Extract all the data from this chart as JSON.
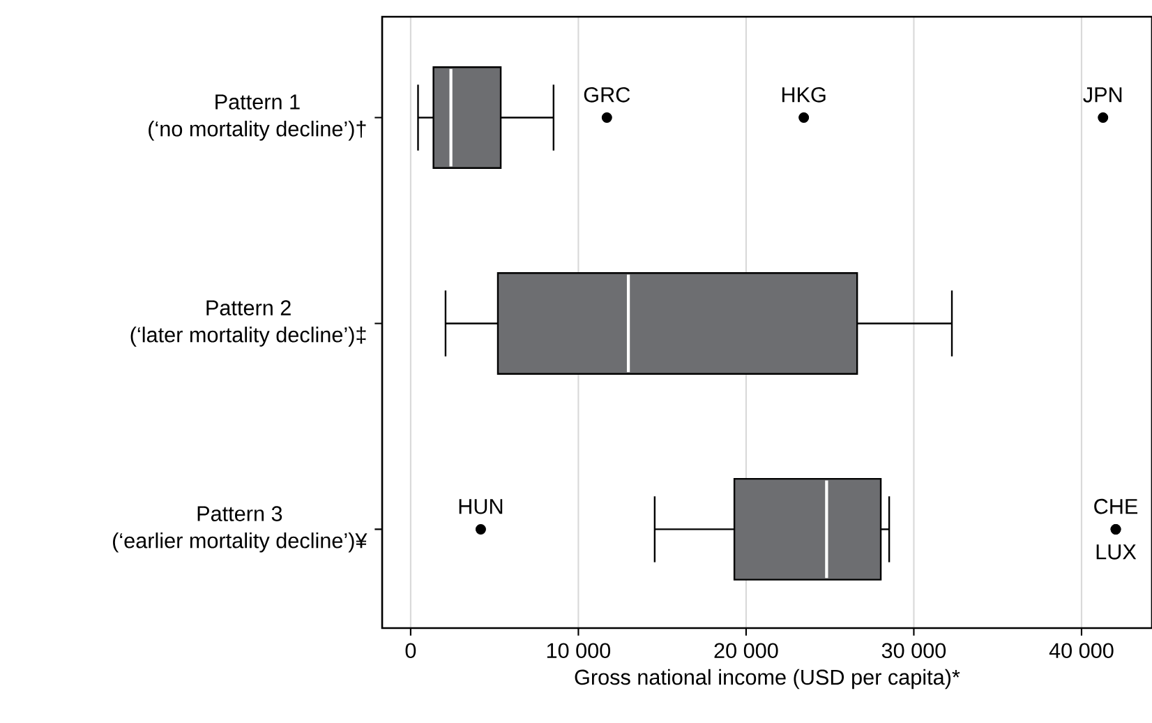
{
  "chart_data": {
    "type": "box",
    "categories": [
      "Pattern 1\n(‘no mortality decline’)†",
      "Pattern 2\n(‘later mortality decline’)‡",
      "Pattern 3\n(‘earlier mortality decline’)¥"
    ],
    "boxes": [
      {
        "low": 440,
        "q1": 1360,
        "median": 2400,
        "q3": 5370,
        "high": 8520,
        "outliers": [
          11700,
          23440,
          41280
        ]
      },
      {
        "low": 2080,
        "q1": 5200,
        "median": 12980,
        "q3": 26620,
        "high": 32270
      },
      {
        "low": 14550,
        "q1": 19300,
        "median": 24800,
        "q3": 28030,
        "high": 28530,
        "outliers": [
          4180,
          42040,
          42040
        ]
      }
    ],
    "color": "#6d6e71",
    "orientation": "horizontal",
    "xlabel": "Gross national income (USD per capita)*",
    "xlim": [
      -1700,
      44200
    ],
    "xticks": [
      0,
      {
        "value": 10000,
        "label": "10 000"
      },
      {
        "value": 20000,
        "label": "20 000"
      },
      {
        "value": 30000,
        "label": "30 000"
      },
      {
        "value": 40000,
        "label": "40 000"
      }
    ],
    "grid": "x",
    "annotations": [
      "GRC",
      "HKG",
      "JPN",
      "HUN",
      "CHE",
      "LUX"
    ]
  }
}
